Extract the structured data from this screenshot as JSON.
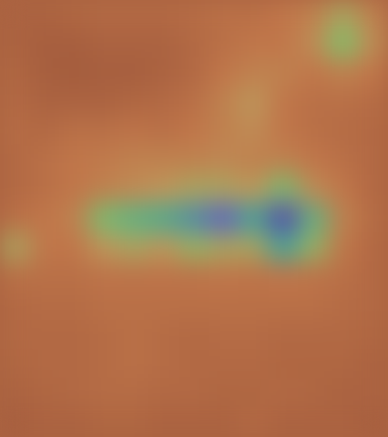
{
  "chart_data": {
    "type": "heatmap",
    "tick_labels": false,
    "color_range": [
      0,
      1
    ],
    "cells": [
      [
        0.15,
        0.15,
        0.18,
        0.2,
        0.2,
        0.2,
        0.22,
        0.25,
        0.25,
        0.3,
        0.35,
        0.5,
        0.35
      ],
      [
        0.15,
        0.12,
        0.12,
        0.15,
        0.15,
        0.15,
        0.2,
        0.25,
        0.3,
        0.3,
        0.4,
        0.6,
        0.4
      ],
      [
        0.18,
        0.12,
        0.1,
        0.12,
        0.12,
        0.15,
        0.2,
        0.3,
        0.35,
        0.35,
        0.3,
        0.35,
        0.3
      ],
      [
        0.2,
        0.15,
        0.15,
        0.15,
        0.18,
        0.2,
        0.25,
        0.35,
        0.45,
        0.3,
        0.25,
        0.25,
        0.22
      ],
      [
        0.22,
        0.2,
        0.25,
        0.25,
        0.28,
        0.25,
        0.3,
        0.35,
        0.4,
        0.3,
        0.25,
        0.22,
        0.2
      ],
      [
        0.2,
        0.25,
        0.3,
        0.32,
        0.35,
        0.35,
        0.35,
        0.38,
        0.35,
        0.35,
        0.3,
        0.25,
        0.2
      ],
      [
        0.2,
        0.25,
        0.3,
        0.35,
        0.4,
        0.45,
        0.5,
        0.5,
        0.45,
        0.62,
        0.4,
        0.3,
        0.2
      ],
      [
        0.25,
        0.3,
        0.35,
        0.62,
        0.68,
        0.72,
        0.8,
        0.88,
        0.75,
        0.95,
        0.68,
        0.35,
        0.22
      ],
      [
        0.5,
        0.3,
        0.3,
        0.45,
        0.5,
        0.45,
        0.55,
        0.5,
        0.5,
        0.75,
        0.55,
        0.3,
        0.2
      ],
      [
        0.25,
        0.25,
        0.25,
        0.28,
        0.28,
        0.28,
        0.28,
        0.3,
        0.28,
        0.3,
        0.28,
        0.25,
        0.2
      ],
      [
        0.2,
        0.22,
        0.22,
        0.25,
        0.25,
        0.25,
        0.25,
        0.25,
        0.25,
        0.25,
        0.25,
        0.22,
        0.2
      ],
      [
        0.2,
        0.2,
        0.2,
        0.22,
        0.25,
        0.22,
        0.2,
        0.22,
        0.22,
        0.2,
        0.2,
        0.2,
        0.18
      ],
      [
        0.18,
        0.2,
        0.2,
        0.22,
        0.25,
        0.22,
        0.2,
        0.2,
        0.2,
        0.18,
        0.18,
        0.18,
        0.15
      ],
      [
        0.15,
        0.18,
        0.2,
        0.22,
        0.22,
        0.2,
        0.2,
        0.18,
        0.18,
        0.2,
        0.18,
        0.15,
        0.15
      ],
      [
        0.12,
        0.15,
        0.15,
        0.18,
        0.18,
        0.15,
        0.15,
        0.15,
        0.2,
        0.15,
        0.15,
        0.15,
        0.12
      ]
    ]
  }
}
